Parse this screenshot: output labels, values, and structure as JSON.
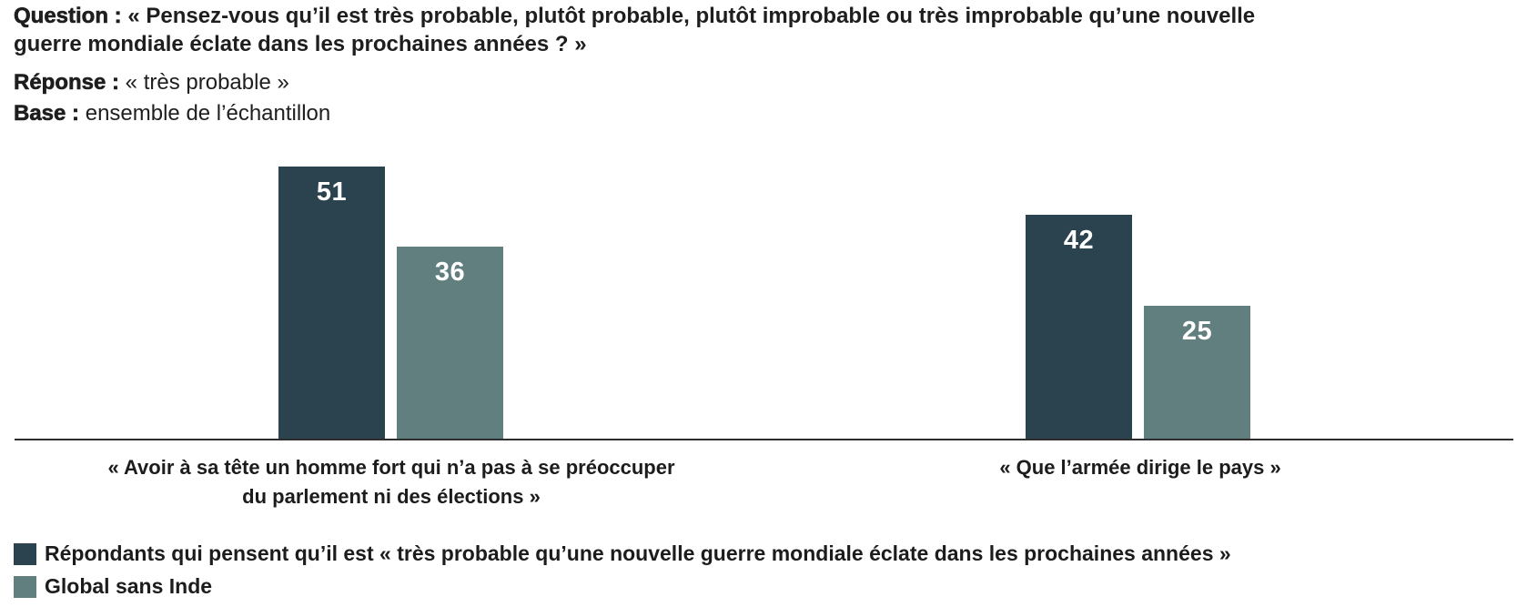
{
  "header": {
    "question_label": "Question :",
    "question_text": " « Pensez-vous qu’il est très probable, plutôt probable, plutôt improbable ou très improbable qu’une nouvelle\nguerre mondiale éclate dans les prochaines années ? »",
    "response_label": "Réponse :",
    "response_text": " « très probable »",
    "base_label": "Base :",
    "base_text": " ensemble de l’échantillon"
  },
  "chart_data": {
    "type": "bar",
    "categories": [
      "« Avoir à sa tête un homme fort qui n’a pas à se préoccuper\ndu parlement ni des élections »",
      "« Que l’armée dirige le pays »"
    ],
    "series": [
      {
        "name": "Répondants qui pensent qu’il est « très probable qu’une nouvelle guerre mondiale éclate dans les prochaines années »",
        "color": "#2a434f",
        "values": [
          51,
          42
        ]
      },
      {
        "name": "Global sans Inde",
        "color": "#617f7e",
        "values": [
          36,
          25
        ]
      }
    ],
    "title": "",
    "xlabel": "",
    "ylabel": "",
    "ylim": [
      0,
      53
    ],
    "grid": false,
    "value_labels": true,
    "legend_position": "bottom-left",
    "axis_line_color": "#2e2e2e"
  }
}
